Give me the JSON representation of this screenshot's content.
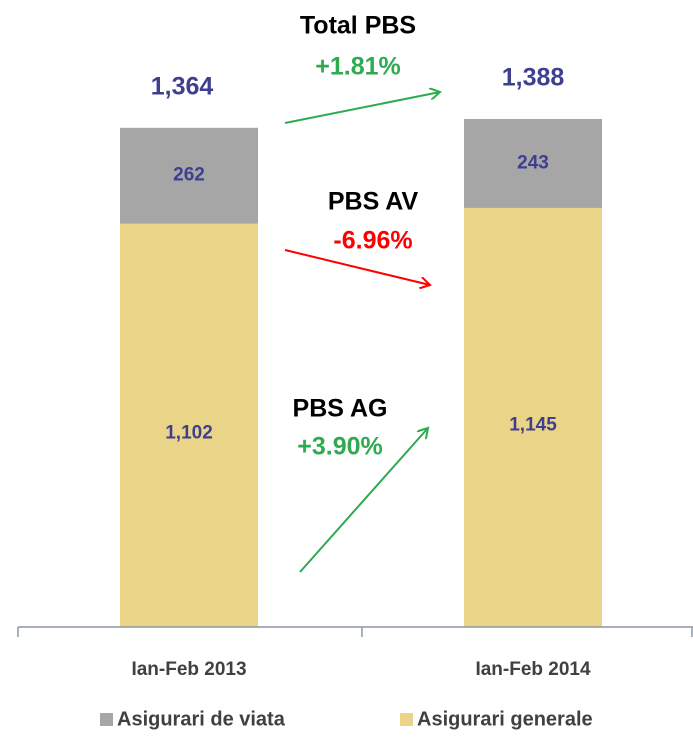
{
  "chart_data": {
    "type": "stacked_bar",
    "categories": [
      "Ian-Feb 2013",
      "Ian-Feb 2014"
    ],
    "series": [
      {
        "name": "Asigurari de viata",
        "color": "#a6a6a6",
        "values": [
          262,
          243
        ],
        "value_labels": [
          "262",
          "243"
        ]
      },
      {
        "name": "Asigurari generale",
        "color": "#ead487",
        "values": [
          1102,
          1145
        ],
        "value_labels": [
          "1,102",
          "1,145"
        ]
      }
    ],
    "totals": [
      1364,
      1388
    ],
    "total_labels": [
      "1,364",
      "1,388"
    ],
    "annotations": [
      {
        "title": "Total PBS",
        "change": "+1.81%",
        "color": "#2eaa50"
      },
      {
        "title": "PBS AV",
        "change": "-6.96%",
        "color": "#ff0000"
      },
      {
        "title": "PBS AG",
        "change": "+3.90%",
        "color": "#2eaa50"
      }
    ],
    "legend": "bottom"
  }
}
